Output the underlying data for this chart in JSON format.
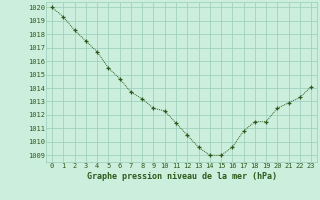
{
  "x": [
    0,
    1,
    2,
    3,
    4,
    5,
    6,
    7,
    8,
    9,
    10,
    11,
    12,
    13,
    14,
    15,
    16,
    17,
    18,
    19,
    20,
    21,
    22,
    23
  ],
  "y": [
    1020.0,
    1019.3,
    1018.3,
    1017.5,
    1016.7,
    1015.5,
    1014.7,
    1013.7,
    1013.2,
    1012.5,
    1012.3,
    1011.4,
    1010.5,
    1009.6,
    1009.0,
    1009.0,
    1009.6,
    1010.8,
    1011.5,
    1011.5,
    1012.5,
    1012.9,
    1013.3,
    1014.1
  ],
  "line_color": "#2d5a1b",
  "marker_color": "#2d5a1b",
  "bg_color": "#cceedd",
  "grid_color": "#99ccbb",
  "text_color": "#2d5a1b",
  "xlabel": "Graphe pression niveau de la mer (hPa)",
  "ylim_min": 1008.5,
  "ylim_max": 1020.4,
  "xlim_min": -0.5,
  "xlim_max": 23.5,
  "yticks": [
    1009,
    1010,
    1011,
    1012,
    1013,
    1014,
    1015,
    1016,
    1017,
    1018,
    1019,
    1020
  ],
  "xticks": [
    0,
    1,
    2,
    3,
    4,
    5,
    6,
    7,
    8,
    9,
    10,
    11,
    12,
    13,
    14,
    15,
    16,
    17,
    18,
    19,
    20,
    21,
    22,
    23
  ]
}
